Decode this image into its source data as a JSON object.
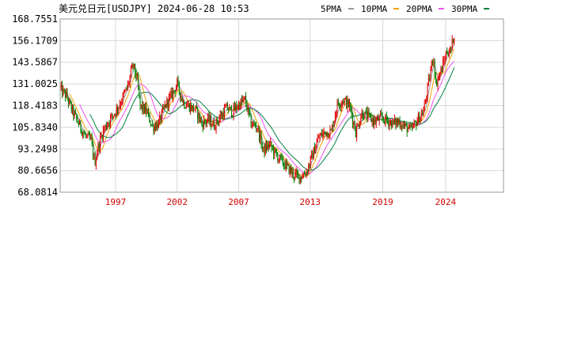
{
  "header": {
    "title": "美元兑日元[USDJPY] 2024-06-28 10:53",
    "legend": [
      {
        "label": "5PMA",
        "color": "#9a9a9a"
      },
      {
        "label": "10PMA",
        "color": "#f0a000"
      },
      {
        "label": "20PMA",
        "color": "#ee55ee"
      },
      {
        "label": "30PMA",
        "color": "#008040"
      }
    ]
  },
  "colors": {
    "up": "#e00000",
    "down": "#008000"
  },
  "chart_data": {
    "type": "candlestick",
    "yticks": [
      "168.7551",
      "156.1709",
      "143.5867",
      "131.0025",
      "118.4183",
      "105.8340",
      "93.2498",
      "80.6656",
      "68.0814"
    ],
    "ylim": [
      68.0814,
      168.7551
    ],
    "xlim": [
      1992.5,
      2028.5
    ],
    "xticks": [
      {
        "label": "1997",
        "x": 1997
      },
      {
        "label": "2002",
        "x": 2002
      },
      {
        "label": "2007",
        "x": 2007
      },
      {
        "label": "2013",
        "x": 2012.8
      },
      {
        "label": "2019",
        "x": 2018.7
      },
      {
        "label": "2024",
        "x": 2023.8
      }
    ],
    "trend": [
      [
        1992.5,
        128
      ],
      [
        1993.0,
        124
      ],
      [
        1993.5,
        115
      ],
      [
        1994.0,
        108
      ],
      [
        1994.5,
        101
      ],
      [
        1995.0,
        98
      ],
      [
        1995.3,
        85
      ],
      [
        1995.6,
        95
      ],
      [
        1996.0,
        104
      ],
      [
        1996.5,
        110
      ],
      [
        1997.0,
        115
      ],
      [
        1997.5,
        122
      ],
      [
        1998.0,
        130
      ],
      [
        1998.4,
        142
      ],
      [
        1998.7,
        135
      ],
      [
        1999.0,
        118
      ],
      [
        1999.5,
        115
      ],
      [
        2000.0,
        106
      ],
      [
        2000.5,
        108
      ],
      [
        2001.0,
        118
      ],
      [
        2001.5,
        124
      ],
      [
        2002.0,
        131
      ],
      [
        2002.5,
        120
      ],
      [
        2003.0,
        118
      ],
      [
        2003.5,
        116
      ],
      [
        2004.0,
        108
      ],
      [
        2004.5,
        110
      ],
      [
        2005.0,
        107
      ],
      [
        2005.5,
        112
      ],
      [
        2006.0,
        117
      ],
      [
        2006.5,
        115
      ],
      [
        2007.0,
        119
      ],
      [
        2007.5,
        122
      ],
      [
        2008.0,
        108
      ],
      [
        2008.5,
        106
      ],
      [
        2009.0,
        92
      ],
      [
        2009.5,
        96
      ],
      [
        2010.0,
        90
      ],
      [
        2010.5,
        86
      ],
      [
        2011.0,
        82
      ],
      [
        2011.5,
        78
      ],
      [
        2012.0,
        77
      ],
      [
        2012.5,
        80
      ],
      [
        2013.0,
        90
      ],
      [
        2013.5,
        100
      ],
      [
        2014.0,
        103
      ],
      [
        2014.5,
        103
      ],
      [
        2015.0,
        119
      ],
      [
        2015.5,
        122
      ],
      [
        2016.0,
        118
      ],
      [
        2016.5,
        103
      ],
      [
        2017.0,
        114
      ],
      [
        2017.5,
        112
      ],
      [
        2018.0,
        109
      ],
      [
        2018.5,
        111
      ],
      [
        2019.0,
        110
      ],
      [
        2019.5,
        108
      ],
      [
        2020.0,
        109
      ],
      [
        2020.5,
        106
      ],
      [
        2021.0,
        104
      ],
      [
        2021.5,
        110
      ],
      [
        2022.0,
        115
      ],
      [
        2022.5,
        135
      ],
      [
        2022.8,
        148
      ],
      [
        2023.0,
        131
      ],
      [
        2023.5,
        140
      ],
      [
        2023.9,
        150
      ],
      [
        2024.2,
        150
      ],
      [
        2024.5,
        160
      ]
    ]
  }
}
